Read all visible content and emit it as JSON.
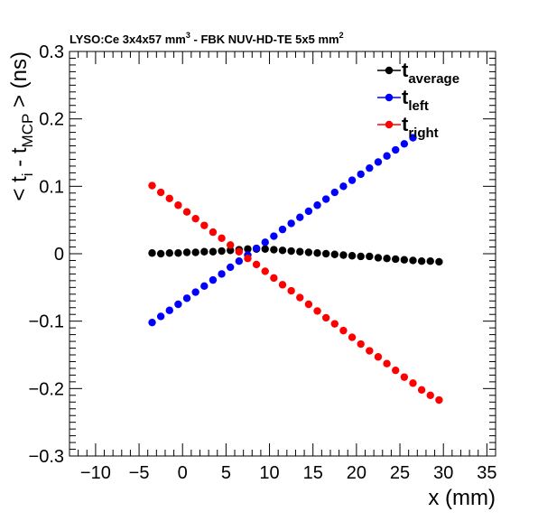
{
  "chart_data": {
    "type": "scatter",
    "title": {
      "prefix": "LYSO:Ce 3x4x57 mm",
      "sup1": "3",
      "middle": " - FBK NUV-HD-TE 5x5 mm",
      "sup2": "2"
    },
    "xlabel": "x (mm)",
    "ylabel": {
      "p1": "< t",
      "s1": "i",
      "p2": " - t",
      "s2": "MCP",
      "p3": " > (ns)"
    },
    "xlim": [
      -13,
      36
    ],
    "ylim": [
      -0.3,
      0.3
    ],
    "x_ticks": [
      -10,
      -5,
      0,
      5,
      10,
      15,
      20,
      25,
      30,
      35
    ],
    "y_ticks": [
      -0.3,
      -0.2,
      -0.1,
      0,
      0.1,
      0.2,
      0.3
    ],
    "x_tick_labels": [
      "−10",
      "−5",
      "0",
      "5",
      "10",
      "15",
      "20",
      "25",
      "30",
      "35"
    ],
    "y_tick_labels": [
      "−0.3",
      "−0.2",
      "−0.1",
      "0",
      "0.1",
      "0.2",
      "0.3"
    ],
    "grid": false,
    "legend_position": "top-right",
    "series": [
      {
        "name": "t",
        "sub": "average",
        "color": "#000000",
        "x": [
          -3.5,
          -2.5,
          -1.5,
          -0.5,
          0.5,
          1.5,
          2.5,
          3.5,
          4.5,
          5.5,
          6.5,
          7.5,
          8.5,
          9.5,
          10.5,
          11.5,
          12.5,
          13.5,
          14.5,
          15.5,
          16.5,
          17.5,
          18.5,
          19.5,
          20.5,
          21.5,
          22.5,
          23.5,
          24.5,
          25.5,
          26.5,
          27.5,
          28.5,
          29.5
        ],
        "y": [
          0.001,
          0.0,
          0.001,
          0.001,
          0.002,
          0.002,
          0.003,
          0.003,
          0.004,
          0.005,
          0.006,
          0.007,
          0.007,
          0.007,
          0.006,
          0.005,
          0.004,
          0.003,
          0.002,
          0.001,
          0.0,
          -0.001,
          -0.002,
          -0.003,
          -0.004,
          -0.004,
          -0.006,
          -0.007,
          -0.008,
          -0.009,
          -0.01,
          -0.011,
          -0.011,
          -0.012
        ]
      },
      {
        "name": "t",
        "sub": "left",
        "color": "#0000ff",
        "x": [
          -3.5,
          -2.5,
          -1.5,
          -0.5,
          0.5,
          1.5,
          2.5,
          3.5,
          4.5,
          5.5,
          6.5,
          7.5,
          8.5,
          9.5,
          10.5,
          11.5,
          12.5,
          13.5,
          14.5,
          15.5,
          16.5,
          17.5,
          18.5,
          19.5,
          20.5,
          21.5,
          22.5,
          23.5,
          24.5,
          25.5,
          26.5
        ],
        "y": [
          -0.102,
          -0.093,
          -0.084,
          -0.075,
          -0.066,
          -0.057,
          -0.048,
          -0.039,
          -0.03,
          -0.02,
          -0.011,
          -0.002,
          0.008,
          0.017,
          0.026,
          0.036,
          0.045,
          0.054,
          0.063,
          0.072,
          0.081,
          0.091,
          0.1,
          0.109,
          0.118,
          0.127,
          0.136,
          0.145,
          0.154,
          0.163,
          0.172
        ]
      },
      {
        "name": "t",
        "sub": "right",
        "color": "#ff0000",
        "x": [
          -3.5,
          -2.5,
          -1.5,
          -0.5,
          0.5,
          1.5,
          2.5,
          3.5,
          4.5,
          5.5,
          6.5,
          7.5,
          8.5,
          9.5,
          10.5,
          11.5,
          12.5,
          13.5,
          14.5,
          15.5,
          16.5,
          17.5,
          18.5,
          19.5,
          20.5,
          21.5,
          22.5,
          23.5,
          24.5,
          25.5,
          26.5,
          27.5,
          28.5,
          29.5
        ],
        "y": [
          0.101,
          0.091,
          0.082,
          0.072,
          0.062,
          0.052,
          0.042,
          0.032,
          0.023,
          0.013,
          0.003,
          -0.007,
          -0.016,
          -0.026,
          -0.036,
          -0.046,
          -0.055,
          -0.065,
          -0.075,
          -0.085,
          -0.095,
          -0.104,
          -0.114,
          -0.124,
          -0.134,
          -0.144,
          -0.153,
          -0.163,
          -0.173,
          -0.183,
          -0.192,
          -0.202,
          -0.21,
          -0.217
        ]
      }
    ]
  }
}
